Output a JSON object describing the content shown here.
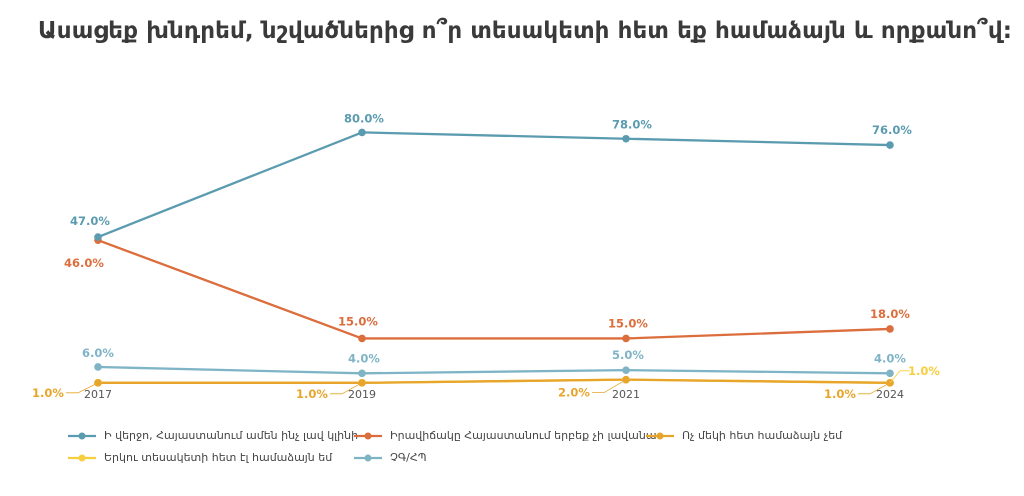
{
  "title": "Ասացեք խնդրեմ, նշվածներից ո՞ր տեսակետի հետ եք համաձայն և որքանո՞վ:",
  "chart_data": {
    "type": "line",
    "title": "Ասացեք խնդրեմ, նշվածներից ո՞ր տեսակետի հետ եք համաձայն և որքանո՞վ:",
    "x": [
      "2017",
      "2019",
      "2021",
      "2024"
    ],
    "ylim": [
      0,
      90
    ],
    "grid": false,
    "legend_position": "bottom",
    "series": [
      {
        "name": "Ի վերջո, Հայաստանում ամեն ինչ լավ կլինի",
        "color": "#5B9BB0",
        "values": [
          47.0,
          80.0,
          78.0,
          76.0
        ],
        "labels": [
          "47.0%",
          "80.0%",
          "78.0%",
          "76.0%"
        ]
      },
      {
        "name": "Իրավիճակը Հայաստանում երբեք չի լավանա",
        "color": "#DC6D3C",
        "values": [
          46.0,
          15.0,
          15.0,
          18.0
        ],
        "labels": [
          "46.0%",
          "15.0%",
          "15.0%",
          "18.0%"
        ]
      },
      {
        "name": "Ոչ մեկի հետ համաձայն չեմ",
        "color": "#E7A52C",
        "values": [
          1.0,
          1.0,
          2.0,
          1.0
        ],
        "labels": [
          "1.0%",
          "1.0%",
          "2.0%",
          "1.0%"
        ]
      },
      {
        "name": "Երկու տեսակետի հետ էլ համաձայն եմ",
        "color": "#F7CE3E",
        "values": [
          1.0,
          1.0,
          2.0,
          1.0
        ],
        "labels": [
          "",
          "",
          "",
          "1.0%"
        ]
      },
      {
        "name": "ՉԳ/ՀՊ",
        "color": "#7FB4C6",
        "values": [
          6.0,
          4.0,
          5.0,
          4.0
        ],
        "labels": [
          "6.0%",
          "4.0%",
          "5.0%",
          "4.0%"
        ]
      }
    ]
  }
}
